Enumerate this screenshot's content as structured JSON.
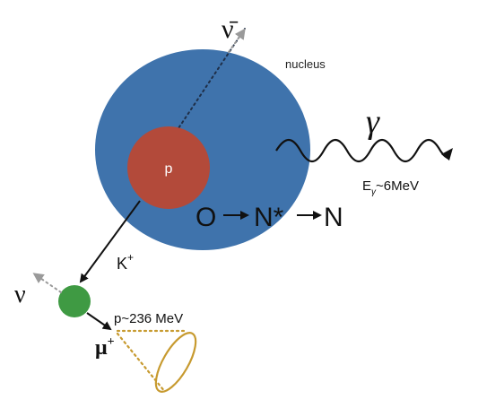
{
  "labels": {
    "antineutrino": "ν̄",
    "nucleus": "nucleus",
    "proton": "p",
    "gamma": "γ",
    "gamma_energy_prefix": "E",
    "gamma_energy_sub": "γ",
    "gamma_energy_value": "~6MeV",
    "reaction_O": "O",
    "reaction_Nstar": "N*",
    "reaction_N": "N",
    "kaon": "K",
    "kaon_charge": "+",
    "neutrino": "ν",
    "muon_momentum": "p~236 MeV",
    "muon": "μ",
    "muon_charge": "+"
  },
  "colors": {
    "nucleus": "#3f73ac",
    "proton": "#b34a3a",
    "kaon": "#3f9a43",
    "arrow": "#111111",
    "neutrino_dotted": "#9a9a9a",
    "cherenkov": "#c79a2f",
    "proton_track": "#1f2f48"
  }
}
